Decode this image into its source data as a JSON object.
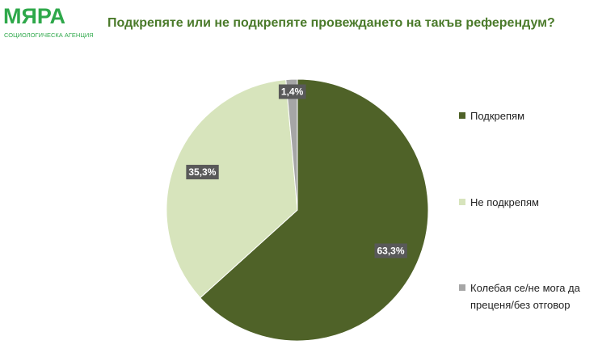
{
  "logo": {
    "name": "МЯРА",
    "tagline": "СОЦИОЛОГИЧЕСКА АГЕНЦИЯ"
  },
  "chart_data": {
    "type": "pie",
    "title": "Подкрепяте или не подкрепяте провеждането на такъв референдум?",
    "categories": [
      "Подкрепям",
      "Не подкрепям",
      "Колебая се/не мога да преценя/без отговор"
    ],
    "values": [
      63.3,
      35.3,
      1.4
    ],
    "value_labels": [
      "63,3%",
      "35,3%",
      "1,4%"
    ],
    "colors": [
      "#4f6228",
      "#d7e4bc",
      "#a6a6a6"
    ],
    "legend": "right"
  }
}
